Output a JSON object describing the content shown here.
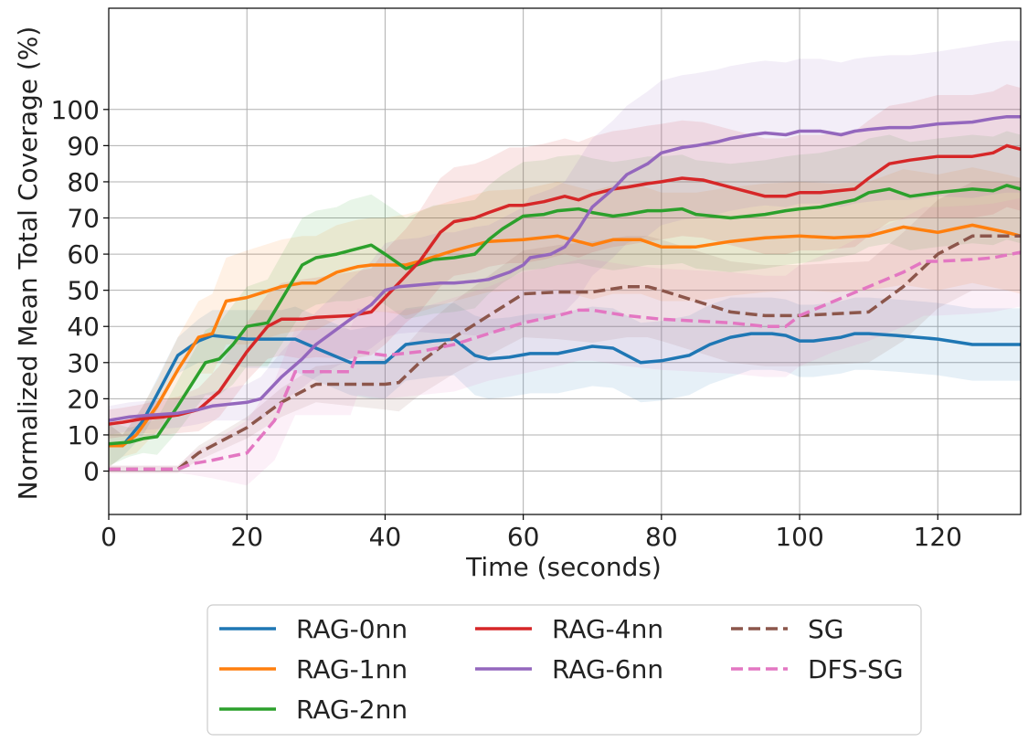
{
  "chart_data": {
    "type": "line",
    "title": "",
    "xlabel": "Time (seconds)",
    "ylabel": "Normalized Mean Total Coverage (%)",
    "xlim": [
      0,
      132
    ],
    "ylim": [
      -12,
      128
    ],
    "xticks": [
      0,
      20,
      40,
      60,
      80,
      100,
      120
    ],
    "yticks": [
      0,
      10,
      20,
      30,
      40,
      50,
      60,
      70,
      80,
      90,
      100
    ],
    "grid": true,
    "legend_position": "bottom-center",
    "series": [
      {
        "name": "RAG-0nn",
        "color": "#1f77b4",
        "dashed": false,
        "x": [
          0,
          2,
          5,
          10,
          13,
          15,
          20,
          25,
          27,
          30,
          35,
          38,
          40,
          43,
          47,
          50,
          53,
          55,
          58,
          61,
          65,
          70,
          73,
          75,
          77,
          80,
          84,
          87,
          90,
          93,
          96,
          98,
          100,
          102,
          106,
          108,
          110,
          114,
          117,
          120,
          125,
          130,
          132
        ],
        "y": [
          7,
          7,
          14,
          32,
          36,
          37.5,
          36.5,
          36.5,
          36.5,
          34,
          30,
          30,
          30,
          35,
          36,
          36.5,
          32,
          31,
          31.5,
          32.5,
          32.5,
          34.5,
          34,
          32,
          30,
          30.5,
          32,
          35,
          37,
          38,
          38,
          37.5,
          36,
          36,
          37,
          38,
          38,
          37.5,
          37,
          36.5,
          35,
          35,
          35
        ],
        "band": [
          6,
          3,
          4,
          5,
          6,
          7,
          8,
          8,
          9,
          9,
          9,
          10,
          10,
          10,
          10,
          10,
          11,
          11,
          11,
          11,
          11,
          11,
          11,
          11,
          11,
          11,
          11,
          11,
          11,
          10,
          10,
          10,
          10,
          10,
          10,
          10,
          10,
          10,
          10,
          10,
          10,
          10,
          10
        ]
      },
      {
        "name": "RAG-1nn",
        "color": "#ff7f0e",
        "dashed": false,
        "x": [
          0,
          2,
          4,
          7,
          10,
          13,
          15,
          17,
          20,
          25,
          28,
          30,
          33,
          36,
          38,
          40,
          43,
          45,
          50,
          55,
          60,
          65,
          70,
          73,
          77,
          80,
          85,
          90,
          95,
          100,
          105,
          110,
          115,
          120,
          125,
          130,
          132
        ],
        "y": [
          7,
          7,
          10,
          18,
          28,
          37,
          38,
          47,
          48,
          51,
          52,
          52,
          55,
          56.5,
          57,
          57,
          57,
          58,
          61,
          63.5,
          64,
          65,
          62.5,
          64,
          64,
          62,
          62,
          63.5,
          64.5,
          65,
          64.5,
          65,
          67.5,
          66,
          68,
          66,
          65
        ],
        "band": [
          6,
          3,
          5,
          7,
          9,
          10,
          11,
          12,
          13,
          13,
          13,
          13,
          13,
          13,
          13,
          13,
          14,
          14,
          14,
          14,
          14,
          15,
          15,
          15,
          15,
          15,
          15,
          15,
          15,
          15,
          15,
          15,
          16,
          16,
          16,
          16,
          16
        ]
      },
      {
        "name": "RAG-2nn",
        "color": "#2ca02c",
        "dashed": false,
        "x": [
          0,
          3,
          5,
          7,
          10,
          14,
          16,
          18,
          20,
          23,
          28,
          30,
          33,
          35,
          37,
          38,
          40,
          43,
          47,
          50,
          53,
          55,
          57,
          60,
          63,
          65,
          68,
          70,
          73,
          75,
          78,
          80,
          83,
          85,
          90,
          95,
          98,
          100,
          103,
          108,
          110,
          113,
          116,
          120,
          125,
          128,
          130,
          132
        ],
        "y": [
          7.5,
          8,
          9,
          9.5,
          18,
          30,
          31,
          35,
          40,
          41,
          57,
          59,
          60,
          61,
          62,
          62.5,
          60,
          56,
          58.5,
          59,
          60,
          64,
          67,
          70.5,
          71,
          72,
          72.5,
          71.5,
          70.5,
          71,
          72,
          72,
          72.5,
          71,
          70,
          71,
          72,
          72.5,
          73,
          75,
          77,
          78,
          76,
          77,
          78,
          77.5,
          79,
          78
        ],
        "band": [
          6,
          4,
          4,
          5,
          7,
          9,
          10,
          11,
          11,
          12,
          13,
          13,
          13,
          14,
          14,
          14,
          14,
          14,
          15,
          15,
          15,
          15,
          15,
          15,
          15,
          15,
          15,
          15,
          15,
          15,
          15,
          15,
          15,
          15,
          15,
          15,
          15,
          15,
          15,
          15,
          15,
          15,
          15,
          15,
          15,
          15,
          15,
          15
        ]
      },
      {
        "name": "RAG-4nn",
        "color": "#d62728",
        "dashed": false,
        "x": [
          0,
          2,
          5,
          8,
          10,
          13,
          16,
          20,
          23,
          25,
          28,
          30,
          35,
          38,
          40,
          43,
          45,
          48,
          50,
          53,
          55,
          58,
          60,
          63,
          66,
          68,
          70,
          73,
          75,
          78,
          80,
          83,
          86,
          88,
          90,
          93,
          95,
          98,
          100,
          103,
          108,
          110,
          113,
          116,
          120,
          125,
          128,
          130,
          132
        ],
        "y": [
          13,
          13.5,
          14.5,
          15,
          15.5,
          17,
          22,
          33,
          40,
          42,
          42,
          42.5,
          43,
          44,
          48,
          54,
          58,
          66,
          69,
          70,
          71.5,
          73.5,
          73.5,
          74.5,
          76,
          75,
          76.5,
          78,
          78.5,
          79.5,
          80,
          81,
          80.5,
          79.5,
          78.5,
          77,
          76,
          76,
          77,
          77,
          78,
          81,
          85,
          86,
          87,
          87,
          88,
          90,
          89
        ],
        "band": [
          4,
          4,
          4,
          5,
          5,
          6,
          7,
          8,
          9,
          10,
          11,
          11,
          12,
          12,
          13,
          13,
          14,
          15,
          15,
          15,
          15,
          16,
          16,
          16,
          16,
          16,
          16,
          16,
          16,
          16,
          16,
          16,
          16,
          16,
          16,
          16,
          16,
          16,
          16,
          16,
          16,
          16,
          16,
          16,
          17,
          17,
          17,
          17,
          17
        ]
      },
      {
        "name": "RAG-6nn",
        "color": "#9467bd",
        "dashed": false,
        "x": [
          0,
          3,
          6,
          10,
          13,
          15,
          20,
          22,
          25,
          28,
          30,
          35,
          38,
          40,
          42,
          45,
          48,
          50,
          53,
          55,
          58,
          60,
          61,
          64,
          66,
          68,
          70,
          73,
          75,
          78,
          80,
          83,
          85,
          88,
          90,
          93,
          95,
          98,
          100,
          103,
          106,
          108,
          110,
          113,
          116,
          120,
          125,
          128,
          130,
          132
        ],
        "y": [
          14,
          15,
          15.5,
          16,
          17,
          18,
          19,
          20,
          26,
          31,
          35,
          42,
          46,
          50,
          51,
          51.5,
          52,
          52,
          52.5,
          53,
          55,
          57,
          59,
          60,
          62,
          67,
          73,
          78,
          82,
          85,
          88,
          89.5,
          90,
          91,
          92,
          93,
          93.5,
          93,
          94,
          94,
          93,
          94,
          94.5,
          95,
          95,
          96,
          96.5,
          97.5,
          98,
          98
        ],
        "band": [
          4,
          4,
          4,
          4,
          4,
          4,
          5,
          6,
          7,
          8,
          9,
          11,
          12,
          13,
          13,
          13,
          14,
          14,
          15,
          15,
          16,
          16,
          17,
          18,
          18,
          19,
          19,
          19,
          19,
          20,
          20,
          20,
          20,
          20,
          20,
          20,
          20,
          20,
          20,
          20,
          20,
          20,
          20,
          20,
          20,
          20,
          21,
          21,
          21,
          21
        ]
      },
      {
        "name": "SG",
        "color": "#8c564b",
        "dashed": true,
        "x": [
          0,
          10,
          13,
          20,
          25,
          30,
          35,
          40,
          42,
          45,
          50,
          55,
          60,
          65,
          70,
          75,
          78,
          80,
          85,
          90,
          95,
          100,
          105,
          110,
          115,
          120,
          125,
          128,
          132
        ],
        "y": [
          0.5,
          0.5,
          5,
          12,
          19,
          24,
          24,
          24,
          24.5,
          30,
          37,
          43,
          49,
          49.5,
          49.5,
          51,
          51,
          50,
          47,
          44,
          43,
          43,
          43.5,
          44,
          51,
          60,
          65,
          65,
          65
        ],
        "band": [
          1,
          1,
          2,
          3,
          4,
          5,
          6,
          7,
          8,
          9,
          10,
          11,
          12,
          13,
          14,
          14,
          14,
          14,
          14,
          14,
          14,
          14,
          14,
          14,
          15,
          15,
          15,
          15,
          15
        ]
      },
      {
        "name": "DFS-SG",
        "color": "#e377c2",
        "dashed": true,
        "x": [
          0,
          10,
          12,
          15,
          20,
          24,
          27,
          30,
          35,
          36,
          40,
          45,
          50,
          55,
          60,
          65,
          68,
          70,
          75,
          80,
          85,
          90,
          95,
          98,
          100,
          105,
          110,
          115,
          118,
          120,
          125,
          128,
          132
        ],
        "y": [
          0.5,
          0.5,
          2,
          3,
          5,
          14,
          27.5,
          27.5,
          27.5,
          33,
          32,
          33,
          35,
          38,
          41,
          43,
          44.5,
          44.5,
          43,
          42,
          41.5,
          41,
          40,
          40,
          43,
          47,
          51,
          55,
          58,
          58,
          58.5,
          59,
          60.5
        ],
        "band": [
          1,
          1,
          3,
          5,
          9,
          11,
          12,
          12,
          12,
          12,
          12,
          12,
          13,
          13,
          14,
          14,
          14,
          14,
          14,
          14,
          14,
          14,
          14,
          14,
          14,
          14,
          15,
          15,
          15,
          15,
          15,
          15,
          15
        ]
      }
    ]
  }
}
